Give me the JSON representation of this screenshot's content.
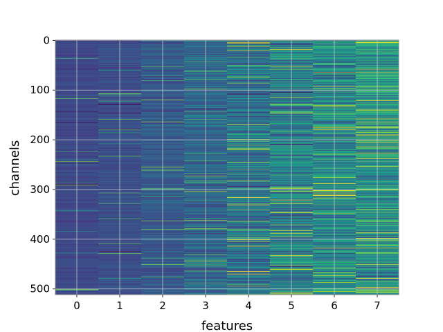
{
  "chart_data": {
    "type": "heatmap",
    "title": "",
    "xlabel": "features",
    "ylabel": "channels",
    "x_categories": [
      "0",
      "1",
      "2",
      "3",
      "4",
      "5",
      "6",
      "7"
    ],
    "x_range": [
      -0.5,
      7.5
    ],
    "y_range": [
      0,
      511
    ],
    "y_inverted": true,
    "y_ticks": [
      0,
      100,
      200,
      300,
      400,
      500
    ],
    "n_channels": 512,
    "grid": true,
    "colormap": "viridis",
    "column_intensity": [
      0.22,
      0.24,
      0.28,
      0.33,
      0.38,
      0.44,
      0.47,
      0.5
    ],
    "column_variability": [
      0.05,
      0.06,
      0.09,
      0.13,
      0.18,
      0.22,
      0.22,
      0.22
    ],
    "colors": {
      "grid": "#d9d9d9",
      "spine": "#888888"
    }
  }
}
